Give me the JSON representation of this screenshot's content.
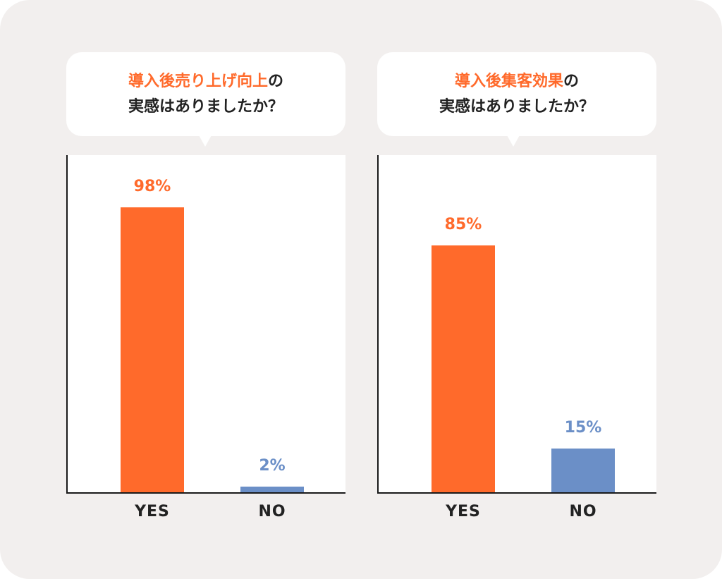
{
  "colors": {
    "yes": "#ff6a2b",
    "no": "#6b8fc7",
    "background": "#f2efee"
  },
  "chart_data": [
    {
      "type": "bar",
      "question": {
        "highlight": "導入後売り上げ向上",
        "suffix": "の",
        "line2": "実感はありましたか？"
      },
      "categories": [
        "YES",
        "NO"
      ],
      "values": [
        98,
        2
      ],
      "value_labels": [
        "98%",
        "2%"
      ],
      "ylim": [
        0,
        100
      ]
    },
    {
      "type": "bar",
      "question": {
        "highlight": "導入後集客効果",
        "suffix": "の",
        "line2": "実感はありましたか？"
      },
      "categories": [
        "YES",
        "NO"
      ],
      "values": [
        85,
        15
      ],
      "value_labels": [
        "85%",
        "15%"
      ],
      "ylim": [
        0,
        100
      ]
    }
  ]
}
